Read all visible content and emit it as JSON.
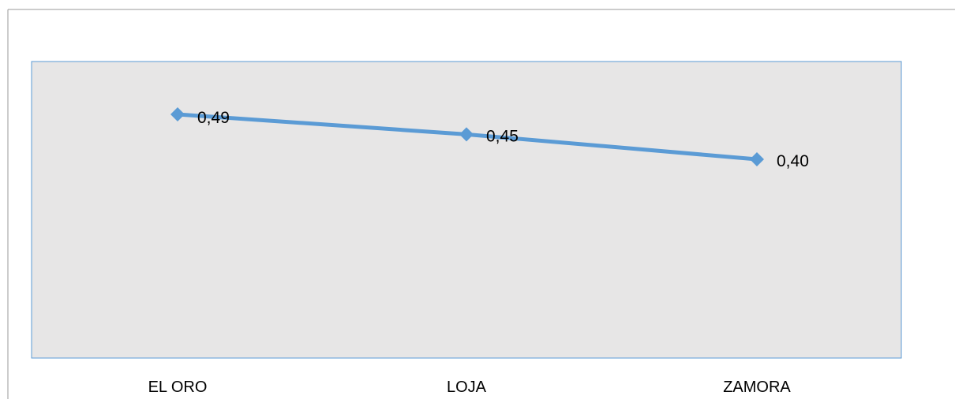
{
  "chart_data": {
    "type": "line",
    "categories": [
      "EL ORO",
      "LOJA",
      "ZAMORA"
    ],
    "series": [
      {
        "values": [
          0.49,
          0.45,
          0.4
        ],
        "labels": [
          "0,49",
          "0,45",
          "0,40"
        ],
        "color": "#5B9BD5",
        "marker": "diamond"
      }
    ],
    "title": "",
    "xlabel": "",
    "ylabel": "",
    "y_axis_visible": false,
    "grid": false,
    "legend": false,
    "plot_area_fill": "#E7E6E6",
    "plot_area_border": "#5B9BD5"
  }
}
